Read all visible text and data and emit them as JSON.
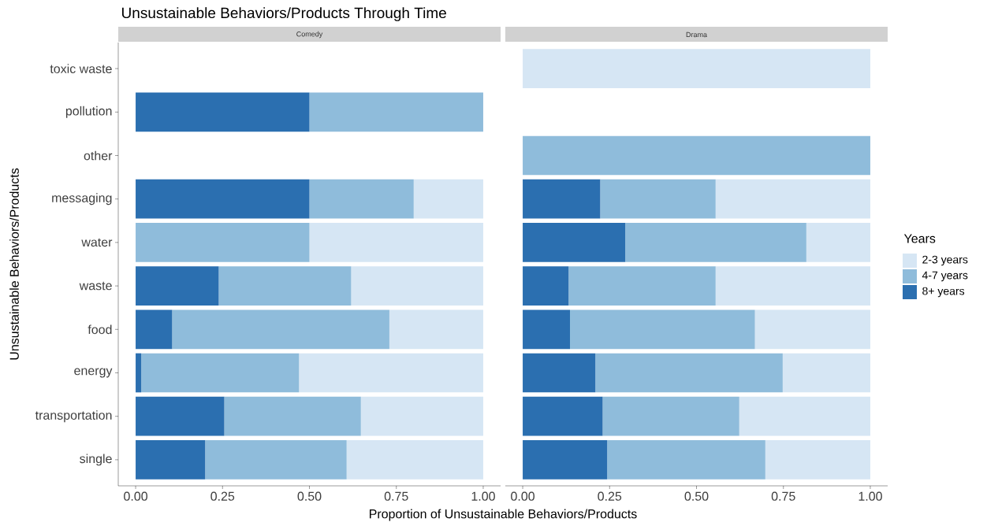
{
  "chart_data": [
    {
      "type": "bar",
      "orientation": "horizontal",
      "stacked": true,
      "title": "Unsustainable Behaviors/Products Through Time",
      "subtitle": "Comedy",
      "xlabel": "Proportion of Unsustainable Behaviors/Products",
      "ylabel": "Unsustainable Behaviors/Products",
      "categories": [
        "toxic waste",
        "pollution",
        "other",
        "messaging",
        "water",
        "waste",
        "food",
        "energy",
        "transportation",
        "single"
      ],
      "series": [
        {
          "color": "#2b6fb0",
          "values": [
            null,
            0.5,
            null,
            0.5,
            null,
            0.239,
            0.105,
            0.016,
            0.255,
            0.2
          ]
        },
        {
          "color": "#8fbcdb",
          "values": [
            null,
            0.5,
            null,
            0.3,
            0.5,
            0.381,
            0.625,
            0.454,
            0.393,
            0.407
          ]
        },
        {
          "color": "#d6e6f4",
          "values": [
            null,
            null,
            null,
            0.2,
            0.5,
            0.38,
            0.27,
            0.53,
            0.352,
            0.393
          ]
        }
      ],
      "xlim": [
        -0.05,
        1.05
      ],
      "xticks": [
        {
          "value": 0,
          "label": "0.00"
        },
        {
          "value": 0.25,
          "label": "0.25"
        },
        {
          "value": 0.5,
          "label": "0.50"
        },
        {
          "value": 0.75,
          "label": "0.75"
        },
        {
          "value": 1,
          "label": "1.00"
        }
      ]
    },
    {
      "type": "bar",
      "orientation": "horizontal",
      "stacked": true,
      "subtitle": "Drama",
      "legend": "right",
      "legend_title": "Years",
      "tick_labels": "x",
      "categories": [
        null,
        null,
        null,
        null,
        null,
        null,
        null,
        null,
        null,
        null
      ],
      "series": [
        {
          "name": "8+ years",
          "color": "#2b6fb0",
          "values": [
            null,
            null,
            null,
            0.223,
            0.295,
            0.132,
            0.136,
            0.209,
            0.23,
            0.243
          ]
        },
        {
          "name": "4-7 years",
          "color": "#8fbcdb",
          "values": [
            null,
            null,
            1.0,
            0.332,
            0.521,
            0.423,
            0.532,
            0.539,
            0.393,
            0.455
          ]
        },
        {
          "name": "2-3 years",
          "color": "#d6e6f4",
          "values": [
            1.0,
            null,
            null,
            0.445,
            0.184,
            0.445,
            0.332,
            0.252,
            0.377,
            0.302
          ]
        }
      ],
      "xlim": [
        -0.05,
        1.05
      ],
      "xticks": [
        {
          "value": 0,
          "label": "0.00"
        },
        {
          "value": 0.25,
          "label": "0.25"
        },
        {
          "value": 0.5,
          "label": "0.50"
        },
        {
          "value": 0.75,
          "label": "0.75"
        },
        {
          "value": 1,
          "label": "1.00"
        }
      ]
    }
  ]
}
